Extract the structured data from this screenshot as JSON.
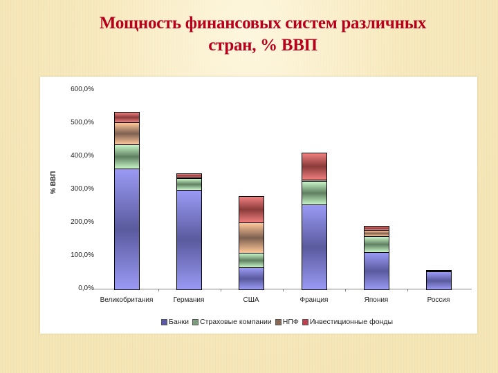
{
  "slide": {
    "title_line1": "Мощность финансовых систем различных",
    "title_line2": "стран, % ВВП"
  },
  "chart_data": {
    "type": "bar",
    "stacked": true,
    "title": "Мощность финансовых систем различных стран, % ВВП",
    "xlabel": "",
    "ylabel": "% ВВП",
    "ylim": [
      0,
      600
    ],
    "yticks": [
      "0,0%",
      "100,0%",
      "200,0%",
      "300,0%",
      "400,0%",
      "500,0%",
      "600,0%"
    ],
    "grid": false,
    "legend_position": "bottom",
    "categories": [
      "Великобритания",
      "Германия",
      "США",
      "Франция",
      "Япония",
      "Россия"
    ],
    "series": [
      {
        "name": "Банки",
        "color": "#8080e0",
        "values": [
          365,
          300,
          67,
          256,
          112,
          54
        ]
      },
      {
        "name": "Страховые компании",
        "color": "#90d090",
        "values": [
          73,
          37,
          44,
          71,
          48,
          0
        ]
      },
      {
        "name": "НПФ",
        "color": "#e0a070",
        "values": [
          67,
          1,
          92,
          4,
          19,
          0
        ]
      },
      {
        "name": "Инвестиционные фонды",
        "color": "#d05050",
        "values": [
          31,
          12,
          79,
          81,
          12,
          5
        ]
      }
    ]
  },
  "legend": [
    {
      "label": "Банки",
      "swatch": "#5a5aa8"
    },
    {
      "label": "Страховые компании",
      "swatch": "#7da07d"
    },
    {
      "label": "НПФ",
      "swatch": "#8a6a52"
    },
    {
      "label": "Инвестиционные фонды",
      "swatch": "#c04050"
    }
  ]
}
